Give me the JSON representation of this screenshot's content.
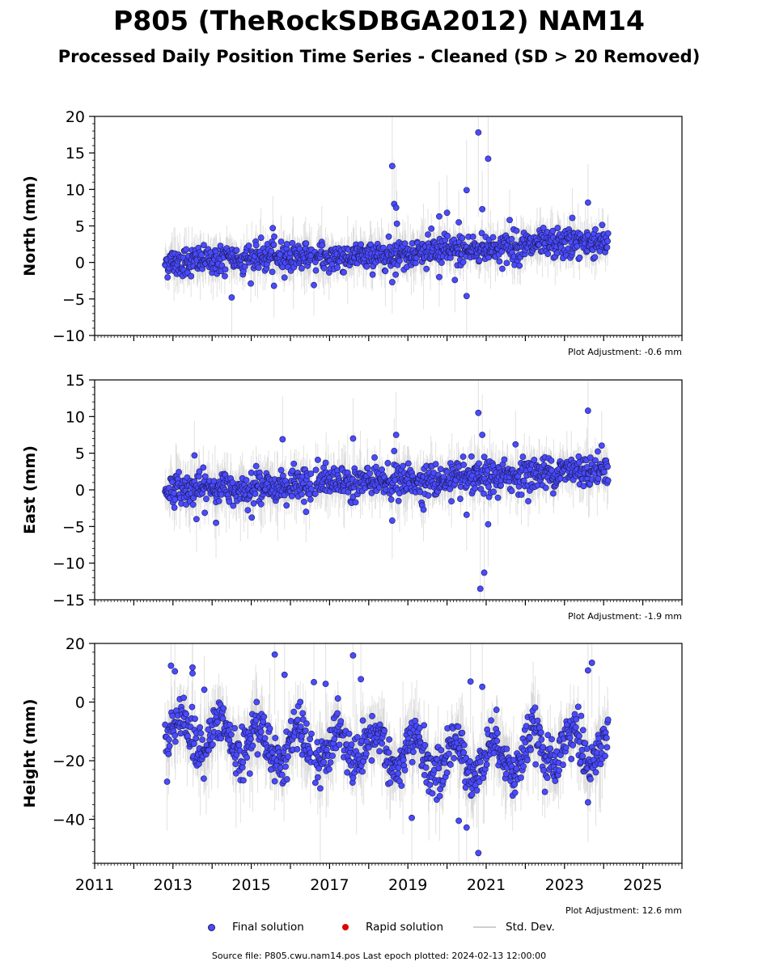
{
  "title": "P805 (TheRockSDBGA2012) NAM14",
  "subtitle": "Processed Daily Position Time Series - Cleaned (SD > 20 Removed)",
  "source_text": "Source file: P805.cwu.nam14.pos  Last epoch plotted: 2024-02-13 12:00:00",
  "legend": {
    "final": "Final solution",
    "rapid": "Rapid solution",
    "std": "Std. Dev."
  },
  "colors": {
    "final_fill": "#4a4aff",
    "final_edge": "#1a1a55",
    "rapid": "#e00000",
    "std_dev": "#c8c8c8"
  },
  "chart_data": [
    {
      "type": "scatter",
      "component": "north",
      "ylabel": "North (mm)",
      "ylim": [
        -10,
        20
      ],
      "yticks": [
        -10,
        -5,
        0,
        5,
        10,
        15,
        20
      ],
      "xlim": [
        2011,
        2026
      ],
      "xticks": [
        2011,
        2013,
        2015,
        2017,
        2019,
        2021,
        2023,
        2025
      ],
      "show_xtick_labels": false,
      "adjustment": "Plot Adjustment: -0.6 mm",
      "data_start": 2012.8,
      "data_end": 2024.12,
      "data_gap": [
        2016.55,
        2016.62
      ],
      "trend": [
        [
          2012.8,
          0.0
        ],
        [
          2016.5,
          1.0
        ],
        [
          2016.6,
          0.5
        ],
        [
          2020.0,
          1.6
        ],
        [
          2024.12,
          2.9
        ]
      ],
      "noise_sd": 1.0,
      "outliers": [
        {
          "x": 2014.5,
          "y": -4.8
        },
        {
          "x": 2015.55,
          "y": 4.7
        },
        {
          "x": 2015.58,
          "y": -3.2
        },
        {
          "x": 2016.6,
          "y": -3.1
        },
        {
          "x": 2018.6,
          "y": 13.2
        },
        {
          "x": 2018.65,
          "y": 8.0
        },
        {
          "x": 2018.7,
          "y": 7.5
        },
        {
          "x": 2018.72,
          "y": 5.3
        },
        {
          "x": 2019.8,
          "y": 6.3
        },
        {
          "x": 2020.3,
          "y": 5.5
        },
        {
          "x": 2020.5,
          "y": 9.9
        },
        {
          "x": 2020.5,
          "y": -4.6
        },
        {
          "x": 2020.8,
          "y": 17.8
        },
        {
          "x": 2020.9,
          "y": 7.3
        },
        {
          "x": 2021.05,
          "y": 14.2
        },
        {
          "x": 2023.6,
          "y": 8.2
        },
        {
          "x": 2018.6,
          "y": -2.7
        },
        {
          "x": 2019.8,
          "y": -2.0
        },
        {
          "x": 2020.0,
          "y": 6.8
        },
        {
          "x": 2020.2,
          "y": -2.4
        },
        {
          "x": 2021.6,
          "y": 5.8
        },
        {
          "x": 2023.2,
          "y": 6.1
        }
      ]
    },
    {
      "type": "scatter",
      "component": "east",
      "ylabel": "East (mm)",
      "ylim": [
        -15,
        15
      ],
      "yticks": [
        -15,
        -10,
        -5,
        0,
        5,
        10,
        15
      ],
      "xlim": [
        2011,
        2026
      ],
      "xticks": [
        2011,
        2013,
        2015,
        2017,
        2019,
        2021,
        2023,
        2025
      ],
      "show_xtick_labels": false,
      "adjustment": "Plot Adjustment: -1.9 mm",
      "data_start": 2012.8,
      "data_end": 2024.12,
      "data_gap": [
        2016.55,
        2016.62
      ],
      "trend": [
        [
          2012.8,
          0.0
        ],
        [
          2016.5,
          0.6
        ],
        [
          2016.6,
          1.1
        ],
        [
          2020.0,
          1.2
        ],
        [
          2024.12,
          3.0
        ]
      ],
      "noise_sd": 1.1,
      "outliers": [
        {
          "x": 2013.55,
          "y": 4.7
        },
        {
          "x": 2013.6,
          "y": -4.0
        },
        {
          "x": 2014.1,
          "y": -4.5
        },
        {
          "x": 2015.8,
          "y": 6.9
        },
        {
          "x": 2016.4,
          "y": -3.0
        },
        {
          "x": 2017.6,
          "y": 7.0
        },
        {
          "x": 2018.6,
          "y": -4.2
        },
        {
          "x": 2018.65,
          "y": 5.3
        },
        {
          "x": 2018.7,
          "y": 7.5
        },
        {
          "x": 2019.4,
          "y": -2.7
        },
        {
          "x": 2020.5,
          "y": -3.4
        },
        {
          "x": 2020.8,
          "y": 10.5
        },
        {
          "x": 2020.85,
          "y": -13.5
        },
        {
          "x": 2020.95,
          "y": -11.3
        },
        {
          "x": 2021.05,
          "y": -4.7
        },
        {
          "x": 2023.6,
          "y": 10.8
        },
        {
          "x": 2020.9,
          "y": 7.5
        },
        {
          "x": 2021.75,
          "y": 6.2
        }
      ]
    },
    {
      "type": "scatter",
      "component": "height",
      "ylabel": "Height (mm)",
      "ylim": [
        -55,
        20
      ],
      "yticks": [
        -40,
        -20,
        0,
        20
      ],
      "xlim": [
        2011,
        2026
      ],
      "xticks": [
        2011,
        2013,
        2015,
        2017,
        2019,
        2021,
        2023,
        2025
      ],
      "show_xtick_labels": true,
      "adjustment": "Plot Adjustment: 12.6 mm",
      "data_start": 2012.8,
      "data_end": 2024.12,
      "data_gap": [
        2016.55,
        2016.62
      ],
      "trend": [
        [
          2012.8,
          -10.0
        ],
        [
          2014.5,
          -13.0
        ],
        [
          2016.5,
          -16.0
        ],
        [
          2018.0,
          -16.0
        ],
        [
          2020.0,
          -20.0
        ],
        [
          2022.5,
          -17.0
        ],
        [
          2024.12,
          -14.0
        ]
      ],
      "seasonal_amplitude": 6,
      "noise_sd": 4.0,
      "outliers": [
        {
          "x": 2012.95,
          "y": 12.4
        },
        {
          "x": 2013.05,
          "y": 10.5
        },
        {
          "x": 2013.5,
          "y": 11.8
        },
        {
          "x": 2013.5,
          "y": 9.8
        },
        {
          "x": 2013.8,
          "y": 4.2
        },
        {
          "x": 2015.6,
          "y": 16.2
        },
        {
          "x": 2015.85,
          "y": 9.3
        },
        {
          "x": 2016.6,
          "y": 6.8
        },
        {
          "x": 2016.9,
          "y": 6.2
        },
        {
          "x": 2017.6,
          "y": 15.9
        },
        {
          "x": 2017.8,
          "y": 7.8
        },
        {
          "x": 2019.1,
          "y": -39.5
        },
        {
          "x": 2020.3,
          "y": -40.5
        },
        {
          "x": 2020.5,
          "y": -42.8
        },
        {
          "x": 2020.8,
          "y": -51.5
        },
        {
          "x": 2023.7,
          "y": 13.4
        },
        {
          "x": 2023.6,
          "y": 10.8
        },
        {
          "x": 2023.6,
          "y": -34.2
        },
        {
          "x": 2020.6,
          "y": 7.0
        },
        {
          "x": 2020.9,
          "y": 5.2
        },
        {
          "x": 2015.5,
          "y": -23.0
        }
      ]
    }
  ]
}
